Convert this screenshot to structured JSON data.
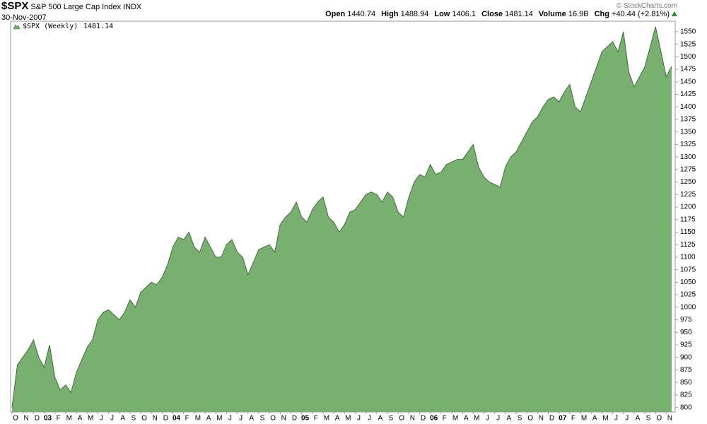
{
  "chart_data": {
    "type": "area",
    "title": "$SPX",
    "subtitle": "S&P 500 Large Cap Index",
    "exchange": "INDX",
    "date": "30-Nov-2007",
    "credit": "© StockCharts.com",
    "quote": [
      {
        "label": "Open",
        "value": 1440.74
      },
      {
        "label": "High",
        "value": 1488.94
      },
      {
        "label": "Low",
        "value": 1406.1
      },
      {
        "label": "Close",
        "value": 1481.14
      },
      {
        "label": "Volume",
        "value": "16.9B"
      },
      {
        "label": "Chg",
        "value": "+40.44 (+2.81%)"
      }
    ],
    "categories": [
      "O",
      null,
      "N",
      null,
      "D",
      null,
      "03",
      null,
      "F",
      null,
      "M",
      null,
      "A",
      null,
      "M",
      null,
      "J",
      null,
      "J",
      null,
      "A",
      null,
      "S",
      null,
      "O",
      null,
      "N",
      null,
      "D",
      null,
      "04",
      null,
      "F",
      null,
      "M",
      null,
      "A",
      null,
      "M",
      null,
      "J",
      null,
      "J",
      null,
      "A",
      null,
      "S",
      null,
      "O",
      null,
      "N",
      null,
      "D",
      null,
      "05",
      null,
      "F",
      null,
      "M",
      null,
      "A",
      null,
      "M",
      null,
      "J",
      null,
      "J",
      null,
      "A",
      null,
      "S",
      null,
      "O",
      null,
      "N",
      null,
      "D",
      null,
      "06",
      null,
      "F",
      null,
      "M",
      null,
      "A",
      null,
      "M",
      null,
      "J",
      null,
      "J",
      null,
      "A",
      null,
      "S",
      null,
      "O",
      null,
      "N",
      null,
      "D",
      null,
      "07",
      null,
      "F",
      null,
      "M",
      null,
      "A",
      null,
      "M",
      null,
      "J",
      null,
      "J",
      null,
      "A",
      null,
      "S",
      null,
      "O",
      null,
      "N",
      null
    ],
    "series": [
      {
        "name": "$SPX (Weekly)",
        "color": "#7aaf72",
        "line_color": "#3f6b3a",
        "values": [
          800,
          885,
          900,
          915,
          935,
          900,
          880,
          925,
          860,
          835,
          845,
          830,
          870,
          895,
          920,
          935,
          975,
          990,
          995,
          985,
          975,
          990,
          1015,
          1000,
          1030,
          1040,
          1050,
          1045,
          1060,
          1085,
          1120,
          1140,
          1135,
          1150,
          1120,
          1110,
          1140,
          1120,
          1100,
          1100,
          1125,
          1135,
          1110,
          1100,
          1065,
          1090,
          1115,
          1120,
          1125,
          1110,
          1165,
          1180,
          1190,
          1210,
          1180,
          1170,
          1195,
          1210,
          1220,
          1180,
          1170,
          1150,
          1165,
          1190,
          1195,
          1210,
          1225,
          1230,
          1225,
          1210,
          1230,
          1220,
          1190,
          1180,
          1220,
          1250,
          1265,
          1260,
          1285,
          1265,
          1270,
          1285,
          1290,
          1295,
          1295,
          1310,
          1325,
          1280,
          1260,
          1250,
          1245,
          1240,
          1280,
          1300,
          1310,
          1330,
          1350,
          1370,
          1380,
          1400,
          1415,
          1420,
          1410,
          1430,
          1445,
          1400,
          1390,
          1420,
          1450,
          1480,
          1510,
          1520,
          1530,
          1510,
          1550,
          1470,
          1440,
          1460,
          1480,
          1520,
          1560,
          1510,
          1460,
          1481.14
        ]
      }
    ],
    "ylim": [
      791,
      1571
    ],
    "yticks": [
      800,
      825,
      850,
      875,
      900,
      925,
      950,
      975,
      1000,
      1025,
      1050,
      1075,
      1100,
      1125,
      1150,
      1175,
      1200,
      1225,
      1250,
      1275,
      1300,
      1325,
      1350,
      1375,
      1400,
      1425,
      1450,
      1475,
      1500,
      1525,
      1550
    ],
    "grid": false
  }
}
